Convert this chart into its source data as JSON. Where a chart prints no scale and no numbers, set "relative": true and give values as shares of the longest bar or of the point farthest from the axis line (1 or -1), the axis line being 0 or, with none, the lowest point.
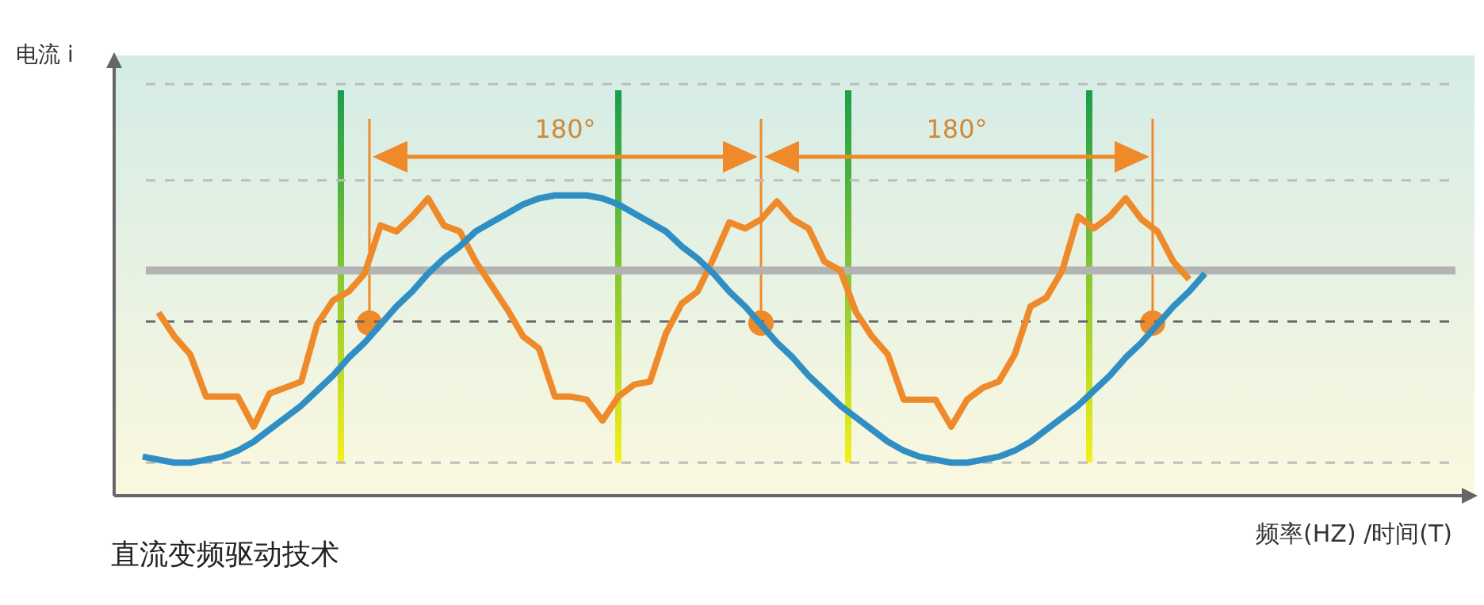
{
  "chart_data": {
    "type": "line",
    "title": "直流变频驱动技术",
    "xlabel": "频率(HZ) /时间(T)",
    "relative": true,
    "legend": false,
    "marker": "none",
    "line_style": "solid",
    "categories": [
      null,
      null,
      null,
      null,
      null,
      null,
      null,
      null,
      null,
      null,
      null,
      null,
      null,
      null,
      null,
      null,
      null,
      null,
      null,
      null,
      null,
      null,
      null,
      null,
      null,
      null,
      null,
      null,
      null,
      null,
      null,
      null,
      null,
      null,
      null,
      null,
      null,
      null,
      null,
      null,
      null,
      null,
      null,
      null,
      null,
      null,
      null,
      null,
      null,
      null,
      null,
      null,
      null,
      null,
      null,
      null,
      null,
      null,
      null,
      null,
      null,
      null,
      null,
      null,
      null,
      null,
      null,
      null
    ],
    "series": [
      {
        "color": "#2f8fc4",
        "values": [
          0.13,
          0.12,
          0.11,
          0.11,
          0.12,
          0.13,
          0.15,
          0.18,
          0.22,
          0.26,
          0.3,
          0.35,
          0.4,
          0.46,
          0.51,
          0.57,
          0.63,
          0.68,
          0.74,
          0.79,
          0.83,
          0.88,
          0.91,
          0.94,
          0.97,
          0.99,
          1.0,
          1,
          1.0,
          0.99,
          0.97,
          0.94,
          0.91,
          0.88,
          0.83,
          0.79,
          0.74,
          0.68,
          0.63,
          0.57,
          0.51,
          0.46,
          0.4,
          0.35,
          0.3,
          0.26,
          0.22,
          0.18,
          0.15,
          0.13,
          0.12,
          0.11,
          0.11,
          0.12,
          0.13,
          0.15,
          0.18,
          0.22,
          0.26,
          0.3,
          0.35,
          0.4,
          0.46,
          0.51,
          0.57,
          0.63,
          0.68,
          0.74
        ]
      },
      {
        "color": "#ee8a2a",
        "values": [
          null,
          0.61,
          0.53,
          0.47,
          0.33,
          0.33,
          0.33,
          0.23,
          0.34,
          0.36,
          0.38,
          0.57,
          0.65,
          0.68,
          0.74,
          0.9,
          0.88,
          0.93,
          0.99,
          0.9,
          0.88,
          0.78,
          0.7,
          0.62,
          0.53,
          0.49,
          0.33,
          0.33,
          0.32,
          0.25,
          0.33,
          0.37,
          0.38,
          0.54,
          0.64,
          0.68,
          0.79,
          0.91,
          0.89,
          0.92,
          0.98,
          0.92,
          0.89,
          0.78,
          0.75,
          0.61,
          0.53,
          0.47,
          0.32,
          0.32,
          0.32,
          0.23,
          0.32,
          0.36,
          0.38,
          0.47,
          0.63,
          0.66,
          0.75,
          0.93,
          0.89,
          0.93,
          0.99,
          0.92,
          0.88,
          0.78,
          0.72,
          null
        ]
      }
    ],
    "ref_lines": [
      {
        "axis": "y",
        "value": 1.37,
        "color": "#bdbdbd",
        "line_style": "dashed"
      },
      {
        "axis": "y",
        "value": 1.05,
        "color": "#bdbdbd",
        "line_style": "dashed"
      },
      {
        "axis": "y",
        "value": 0.75,
        "color": "#b3b3b3",
        "line_style": "solid"
      },
      {
        "axis": "y",
        "value": 0.58,
        "color": "#666666",
        "line_style": "dashed"
      },
      {
        "axis": "y",
        "value": 0.11,
        "color": "#bdbdbd",
        "line_style": "dashed"
      }
    ],
    "annotations": [
      "电流 i",
      "180°",
      "180°"
    ]
  }
}
